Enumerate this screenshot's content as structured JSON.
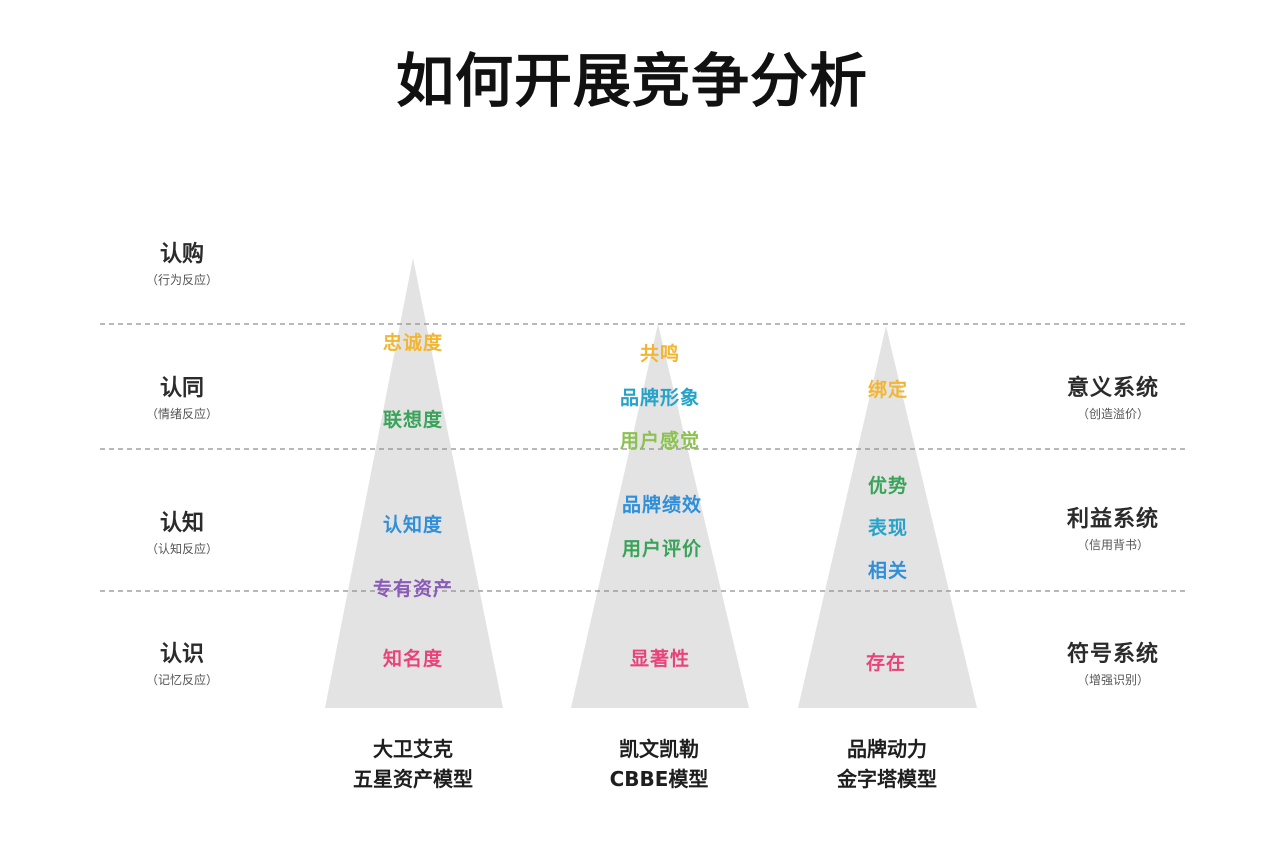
{
  "title": "如何开展竞争分析",
  "levels": [
    {
      "label": "认购",
      "sub": "（行为反应）"
    },
    {
      "label": "认同",
      "sub": "（情绪反应）"
    },
    {
      "label": "认知",
      "sub": "（认知反应）"
    },
    {
      "label": "认识",
      "sub": "（记忆反应）"
    }
  ],
  "systems": [
    {
      "label": "意义系统",
      "sub": "（创造溢价）"
    },
    {
      "label": "利益系统",
      "sub": "（信用背书）"
    },
    {
      "label": "符号系统",
      "sub": "（增强识别）"
    }
  ],
  "models": [
    {
      "name_line1": "大卫艾克",
      "name_line2": "五星资产模型",
      "labels": [
        "忠诚度",
        "联想度",
        "认知度",
        "专有资产",
        "知名度"
      ]
    },
    {
      "name_line1": "凯文凯勒",
      "name_line2": "CBBE模型",
      "labels": [
        "共鸣",
        "品牌形象",
        "用户感觉",
        "品牌绩效",
        "用户评价",
        "显著性"
      ]
    },
    {
      "name_line1": "品牌动力",
      "name_line2": "金字塔模型",
      "labels": [
        "绑定",
        "优势",
        "表现",
        "相关",
        "存在"
      ]
    }
  ],
  "colors": {
    "yellow": "#f2b632",
    "green": "#3aa35a",
    "blue": "#2f8fd8",
    "purple": "#8a5bb8",
    "pink": "#e8437a",
    "cyan": "#27a3c9",
    "lightgreen": "#8cc152",
    "triangle": "#e5e5e5",
    "divider": "#9a9a9a"
  }
}
